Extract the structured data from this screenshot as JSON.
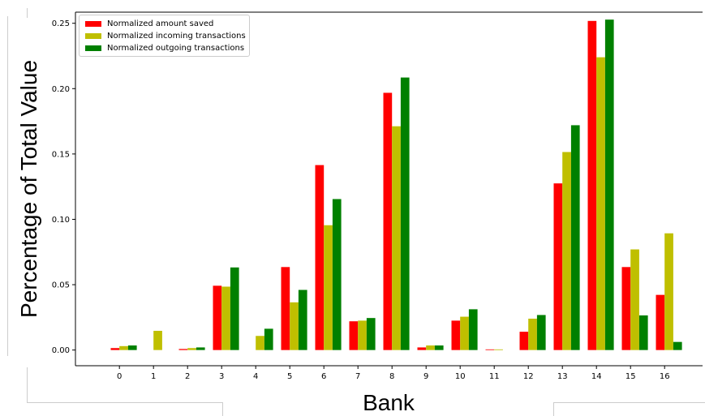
{
  "chart_data": {
    "type": "bar",
    "title": "",
    "xlabel": "Bank",
    "ylabel": "Percentage of Total Value",
    "ylim": [
      -0.012,
      0.2585
    ],
    "yticks": [
      "0.00",
      "0.05",
      "0.10",
      "0.15",
      "0.20",
      "0.25"
    ],
    "categories": [
      "0",
      "1",
      "2",
      "3",
      "4",
      "5",
      "6",
      "7",
      "8",
      "9",
      "10",
      "11",
      "12",
      "13",
      "14",
      "15",
      "16"
    ],
    "legend_position": "top-left",
    "grid": false,
    "series": [
      {
        "name": "Normalized amount saved",
        "color": "#ff0000",
        "values": [
          0.0015,
          0.0,
          0.0008,
          0.0492,
          0.0,
          0.0635,
          0.1415,
          0.022,
          0.1968,
          0.002,
          0.0225,
          0.0005,
          0.014,
          0.1275,
          0.2518,
          0.0635,
          0.0422
        ]
      },
      {
        "name": "Normalized incoming transactions",
        "color": "#bfbf00",
        "values": [
          0.003,
          0.0147,
          0.0015,
          0.0485,
          0.0108,
          0.0365,
          0.0955,
          0.0225,
          0.1712,
          0.0035,
          0.0255,
          0.0005,
          0.024,
          0.1515,
          0.224,
          0.077,
          0.0893
        ]
      },
      {
        "name": "Normalized outgoing transactions",
        "color": "#008000",
        "values": [
          0.0035,
          0.0,
          0.002,
          0.0632,
          0.0163,
          0.046,
          0.1155,
          0.0245,
          0.2085,
          0.0035,
          0.0312,
          0.0,
          0.0268,
          0.172,
          0.2528,
          0.0265,
          0.0062
        ]
      }
    ]
  }
}
